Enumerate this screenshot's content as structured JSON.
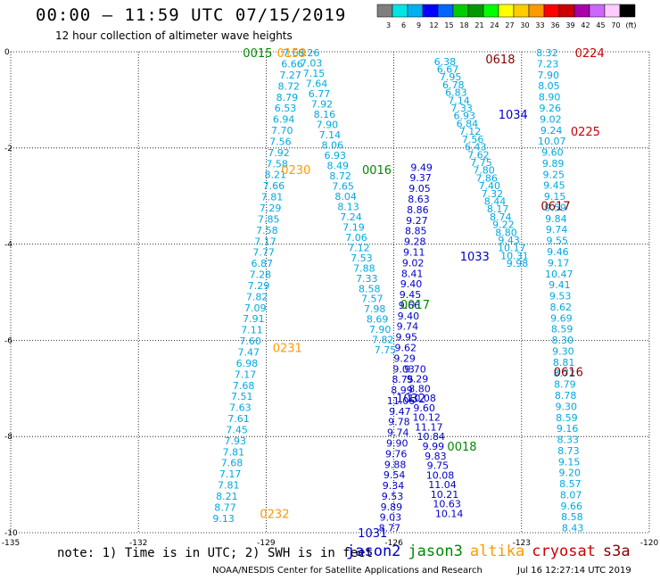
{
  "header": {
    "title": "00:00 – 11:59 UTC 07/15/2019",
    "subtitle": "12 hour collection of altimeter wave heights"
  },
  "footer": {
    "note": "note: 1) Time is in UTC; 2) SWH is in feet",
    "credit": "NOAA/NESDIS Center for Satellite Applications and Research",
    "generated": "Jul 16 12:27:14 UTC 2019"
  },
  "satellites": [
    {
      "name": "jason2",
      "color": "#0000cc"
    },
    {
      "name": "jason3",
      "color": "#008800"
    },
    {
      "name": "altika",
      "color": "#ff9900"
    },
    {
      "name": "cryosat",
      "color": "#cc0000"
    },
    {
      "name": "s3a",
      "color": "#880000"
    }
  ],
  "colorbar": {
    "ticks": [
      "3",
      "6",
      "9",
      "12",
      "15",
      "18",
      "21",
      "24",
      "27",
      "30",
      "33",
      "36",
      "39",
      "42",
      "45",
      "70",
      "(ft)"
    ],
    "colors": [
      "#7f7f7f",
      "#00e5e5",
      "#00b0f0",
      "#0000ff",
      "#0066ff",
      "#00cc00",
      "#009900",
      "#00ff00",
      "#ffff00",
      "#ffcc00",
      "#ff9900",
      "#ff0000",
      "#cc0000",
      "#aa00aa",
      "#cc66ff",
      "#ffccff",
      "#000000"
    ]
  },
  "chart_data": {
    "type": "scatter",
    "xlim": [
      -135,
      -120
    ],
    "ylim": [
      -10,
      0
    ],
    "xticks": [
      "-135",
      "-132",
      "-129",
      "-126",
      "-123",
      "-120"
    ],
    "yticks": [
      "0",
      "-2",
      "-4",
      "-6",
      "-8",
      "-10"
    ],
    "grid": true,
    "time_labels": [
      {
        "t": "0159",
        "lon": -128.4,
        "lat": -0.02,
        "color": "#ff9900"
      },
      {
        "t": "0015",
        "lon": -129.2,
        "lat": -0.02,
        "color": "#008800"
      },
      {
        "t": "0618",
        "lon": -123.5,
        "lat": -0.15,
        "color": "#880000"
      },
      {
        "t": "0224",
        "lon": -121.4,
        "lat": -0.02,
        "color": "#cc0000"
      },
      {
        "t": "1034",
        "lon": -123.2,
        "lat": -1.3,
        "color": "#0000cc"
      },
      {
        "t": "0225",
        "lon": -121.5,
        "lat": -1.65,
        "color": "#cc0000"
      },
      {
        "t": "0230",
        "lon": -128.3,
        "lat": -2.45,
        "color": "#ff9900"
      },
      {
        "t": "0016",
        "lon": -126.4,
        "lat": -2.45,
        "color": "#008800"
      },
      {
        "t": "0617",
        "lon": -122.2,
        "lat": -3.2,
        "color": "#880000"
      },
      {
        "t": "1033",
        "lon": -124.1,
        "lat": -4.25,
        "color": "#0000cc"
      },
      {
        "t": "0017",
        "lon": -125.5,
        "lat": -5.25,
        "color": "#008800"
      },
      {
        "t": "0231",
        "lon": -128.5,
        "lat": -6.15,
        "color": "#ff9900"
      },
      {
        "t": "0616",
        "lon": -121.9,
        "lat": -6.65,
        "color": "#880000"
      },
      {
        "t": "1032",
        "lon": -125.6,
        "lat": -7.2,
        "color": "#0000cc"
      },
      {
        "t": "0018",
        "lon": -124.4,
        "lat": -8.2,
        "color": "#008800"
      },
      {
        "t": "0232",
        "lon": -128.8,
        "lat": -9.6,
        "color": "#ff9900"
      },
      {
        "t": "1031",
        "lon": -126.5,
        "lat": -10.0,
        "color": "#0000cc"
      }
    ],
    "tracks": [
      {
        "name": "altika-0159-0232",
        "color": "#00a8e0",
        "values": [
          "7.63",
          "6.66",
          "7.27",
          "8.72",
          "8.79",
          "6.53",
          "6.94",
          "7.70",
          "7.56",
          "7.92",
          "7.58",
          "8.21",
          "7.66",
          "7.81",
          "7.29",
          "7.85",
          "7.58",
          "7.17",
          "7.77",
          "6.87",
          "7.28",
          "7.29",
          "7.82",
          "7.09",
          "7.91",
          "7.11",
          "7.60",
          "7.47",
          "6.98",
          "7.17",
          "7.68",
          "7.51",
          "7.63",
          "7.61",
          "7.45",
          "7.93",
          "7.81",
          "7.68",
          "7.17",
          "7.81",
          "8.21",
          "8.77",
          "9.13"
        ],
        "start": [
          -128.35,
          -0.02
        ],
        "end": [
          -130.0,
          -9.7
        ]
      },
      {
        "name": "jason3-0015-0018",
        "color": "#00a8e0",
        "values": [
          "6.26",
          "7.03",
          "7.15",
          "7.64",
          "6.77",
          "7.92",
          "8.16",
          "7.90",
          "7.14",
          "8.06",
          "6.93",
          "8.49",
          "8.72",
          "7.65",
          "8.04",
          "8.13",
          "7.24",
          "7.19",
          "7.06",
          "7.12",
          "7.53",
          "7.88",
          "7.33",
          "8.58",
          "7.57",
          "7.98",
          "8.69",
          "7.90",
          "7.82",
          "7.75"
        ],
        "start": [
          -128.0,
          -0.02
        ],
        "end": [
          -126.2,
          -6.2
        ]
      },
      {
        "name": "jason2-1031-1034",
        "color": "#0000cc",
        "values": [
          "9.49",
          "9.37",
          "9.05",
          "8.63",
          "8.86",
          "9.27",
          "8.85",
          "9.28",
          "9.11",
          "9.02",
          "8.41",
          "9.40",
          "9.45",
          "9.66",
          "9.40",
          "9.74",
          "9.95",
          "9.62",
          "9.29",
          "9.03",
          "8.75",
          "8.99",
          "11.06",
          "9.47",
          "9.78",
          "9.74",
          "9.90",
          "9.76",
          "9.88",
          "9.54",
          "9.34",
          "9.53",
          "9.89",
          "9.03",
          "8.77"
        ],
        "start": [
          -125.35,
          -2.4
        ],
        "end": [
          -126.1,
          -9.9
        ]
      },
      {
        "name": "jason2b-1031",
        "color": "#0000cc",
        "values": [
          "9.70",
          "9.29",
          "8.80",
          "10.08",
          "9.60",
          "10.12",
          "11.17",
          "10.84",
          "9.99",
          "9.83",
          "9.75",
          "10.08",
          "11.04",
          "10.21",
          "10.63",
          "10.14"
        ],
        "start": [
          -125.5,
          -6.6
        ],
        "end": [
          -124.7,
          -9.6
        ]
      },
      {
        "name": "cryosat-0224",
        "color": "#00a8e0",
        "values": [
          "8.32",
          "7.23",
          "7.90",
          "8.05",
          "8.90",
          "9.26",
          "9.02",
          "9.24",
          "10.07",
          "9.60",
          "9.89",
          "9.25",
          "9.45",
          "9.15",
          "9.59",
          "9.84",
          "9.74",
          "9.55",
          "9.46",
          "9.17",
          "10.47",
          "9.41",
          "9.53",
          "8.62",
          "9.69",
          "8.59",
          "8.30",
          "9.30",
          "8.81",
          "8.72",
          "8.79",
          "8.78",
          "9.30",
          "8.59",
          "9.16",
          "8.33",
          "8.73",
          "9.15",
          "9.20",
          "8.57",
          "8.07",
          "9.66",
          "8.58",
          "8.43"
        ],
        "start": [
          -122.4,
          -0.02
        ],
        "end": [
          -121.8,
          -9.9
        ]
      },
      {
        "name": "s3a-0618-0616",
        "color": "#00a8e0",
        "values": [
          "6.38",
          "6.67",
          "7.95",
          "6.78",
          "6.83",
          "7.14",
          "7.33",
          "6.93",
          "6.84",
          "7.12",
          "7.56",
          "6.43",
          "7.62",
          "7.75",
          "7.80",
          "7.86",
          "7.40",
          "7.32",
          "8.44",
          "8.17",
          "8.74",
          "9.22",
          "8.80",
          "9.43",
          "10.17",
          "10.31",
          "9.98"
        ],
        "start": [
          -124.8,
          -0.2
        ],
        "end": [
          -123.1,
          -4.4
        ]
      }
    ]
  }
}
